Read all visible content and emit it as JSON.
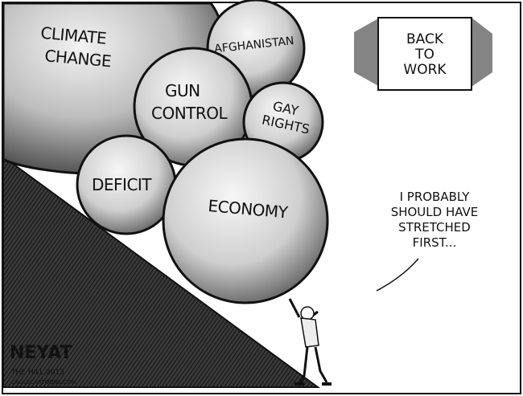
{
  "cartoon": {
    "topics": {
      "climate": [
        "CLIMATE",
        "CHANGE"
      ],
      "afghanistan": "AFGHANISTAN",
      "gun": [
        "GUN",
        "CONTROL"
      ],
      "gay": [
        "GAY",
        "RIGHTS"
      ],
      "deficit": "DEFICIT",
      "economy": "ECONOMY"
    },
    "sign": [
      "BACK",
      "TO",
      "WORK"
    ],
    "speech": [
      "I PROBABLY",
      "SHOULD HAVE",
      "STRETCHED",
      "FIRST..."
    ],
    "signature": [
      "NEYAT",
      "THE HILL 2013",
      "CAGLECARTOONS.COM"
    ]
  },
  "colors": {
    "ink": "#111111",
    "paper": "#ffffff",
    "hill": "#2a2a2a"
  }
}
